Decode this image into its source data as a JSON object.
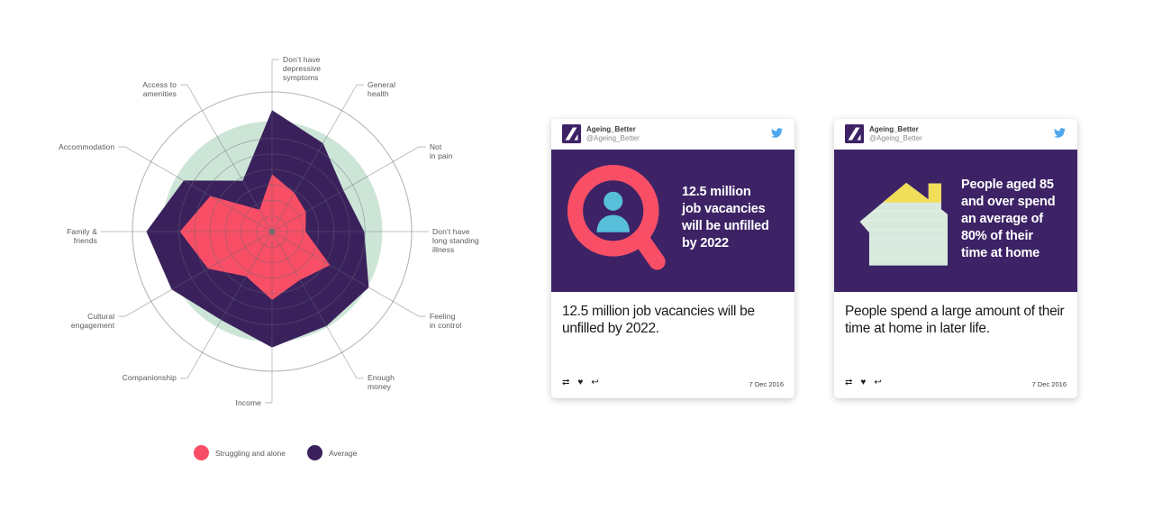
{
  "colors": {
    "pink": "#f84f66",
    "radar_purple": "#3a215c",
    "banner_purple": "#3d2366",
    "mint": "#cde5d6",
    "house_mint": "#d8eadd",
    "roof_yellow": "#f1de5a",
    "teal": "#57bfd9",
    "twitter_blue": "#4fa8ee",
    "grid_gray": "#b4b7bb"
  },
  "radar": {
    "chart_data": {
      "type": "radar",
      "axes": [
        {
          "label": "Don’t have depressive symptoms",
          "lines": [
            "Don’t have",
            "depressive",
            "symptoms"
          ]
        },
        {
          "label": "General health",
          "lines": [
            "General",
            "health"
          ]
        },
        {
          "label": "Not in pain",
          "lines": [
            "Not",
            "in pain"
          ]
        },
        {
          "label": "Don’t have long standing illness",
          "lines": [
            "Don’t have",
            "long standing",
            "illness"
          ]
        },
        {
          "label": "Feeling in control",
          "lines": [
            "Feeling",
            "in control"
          ]
        },
        {
          "label": "Enough money",
          "lines": [
            "Enough",
            "money"
          ]
        },
        {
          "label": "Income",
          "lines": [
            "Income"
          ]
        },
        {
          "label": "Companionship",
          "lines": [
            "Companionship"
          ]
        },
        {
          "label": "Cultural engagement",
          "lines": [
            "Cultural",
            "engagement"
          ]
        },
        {
          "label": "Family & friends",
          "lines": [
            "Family &",
            "friends"
          ]
        },
        {
          "label": "Accommodation",
          "lines": [
            "Accommodation"
          ]
        },
        {
          "label": "Access to amenities",
          "lines": [
            "Access to",
            "amenities"
          ]
        }
      ],
      "series": [
        {
          "name": "Struggling and alone",
          "color": "#f84f66",
          "values": [
            0.41,
            0.32,
            0.28,
            0.24,
            0.48,
            0.4,
            0.49,
            0.37,
            0.53,
            0.66,
            0.51,
            0.18
          ]
        },
        {
          "name": "Average",
          "color": "#3a215c",
          "values": [
            0.87,
            0.73,
            0.59,
            0.66,
            0.8,
            0.78,
            0.83,
            0.73,
            0.83,
            0.9,
            0.73,
            0.42
          ]
        }
      ],
      "scale": {
        "min": 0,
        "max": 1
      },
      "grid_rings": 6,
      "reference_band_radius": 0.79,
      "reference_band_color": "#cde5d6",
      "legend_position": "bottom"
    }
  },
  "cards": [
    {
      "account_name": "Ageing_Better",
      "account_handle": "@Ageing_Better",
      "logo_icon": "ageing-better-logo",
      "twitter_icon": "twitter-bird",
      "banner_icon": "magnifier-person-icon",
      "banner_lines": [
        "12.5 million",
        "job vacancies",
        "will be unfilled",
        "by 2022"
      ],
      "body_text": "12.5 million job vacancies will be unfilled by 2022.",
      "footer_icons": [
        {
          "name": "retweet-icon",
          "glyph": "⇄"
        },
        {
          "name": "like-icon",
          "glyph": "♥"
        },
        {
          "name": "reply-icon",
          "glyph": "↩"
        }
      ],
      "date": "7 Dec 2016"
    },
    {
      "account_name": "Ageing_Better",
      "account_handle": "@Ageing_Better",
      "logo_icon": "ageing-better-logo",
      "twitter_icon": "twitter-bird",
      "banner_icon": "house-icon",
      "banner_lines": [
        "People aged 85",
        "and over spend",
        "an average of",
        "80% of their",
        "time at home"
      ],
      "body_text": "People spend a large amount of their time at home in later life.",
      "footer_icons": [
        {
          "name": "retweet-icon",
          "glyph": "⇄"
        },
        {
          "name": "like-icon",
          "glyph": "♥"
        },
        {
          "name": "reply-icon",
          "glyph": "↩"
        }
      ],
      "date": "7 Dec 2016"
    }
  ]
}
